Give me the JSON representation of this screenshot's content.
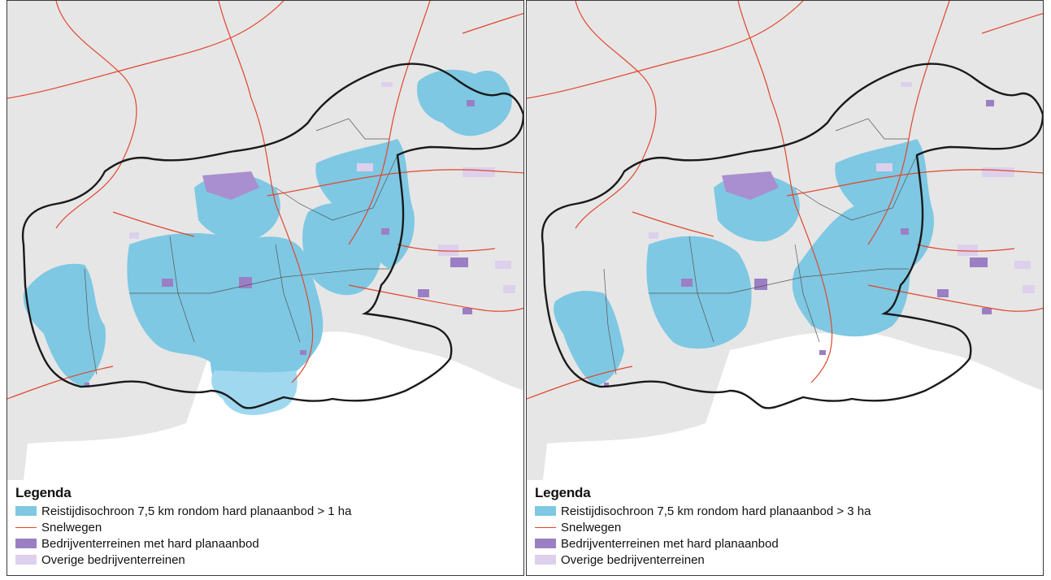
{
  "colors": {
    "isochrone": "#7ec8e3",
    "highway": "#e0472d",
    "hard_plan": "#9b7fc4",
    "other_terrain": "#ddd0ec",
    "land": "#e6e6e6",
    "boundary": "#1a1a1a"
  },
  "panels": [
    {
      "legend": {
        "title": "Legenda",
        "items": [
          {
            "label": "Reistijdisochroon 7,5 km rondom hard planaanbod > 1 ha",
            "icon": "blue-swatch"
          },
          {
            "label": "Snelwegen",
            "icon": "red-line"
          },
          {
            "label": "Bedrijventerreinen met hard planaanbod",
            "icon": "purple-swatch"
          },
          {
            "label": "Overige bedrijventerreinen",
            "icon": "light-purple-swatch"
          }
        ]
      }
    },
    {
      "legend": {
        "title": "Legenda",
        "items": [
          {
            "label": "Reistijdisochroon 7,5 km rondom hard planaanbod > 3 ha",
            "icon": "blue-swatch"
          },
          {
            "label": "Snelwegen",
            "icon": "red-line"
          },
          {
            "label": "Bedrijventerreinen met hard planaanbod",
            "icon": "purple-swatch"
          },
          {
            "label": "Overige bedrijventerreinen",
            "icon": "light-purple-swatch"
          }
        ]
      }
    }
  ]
}
